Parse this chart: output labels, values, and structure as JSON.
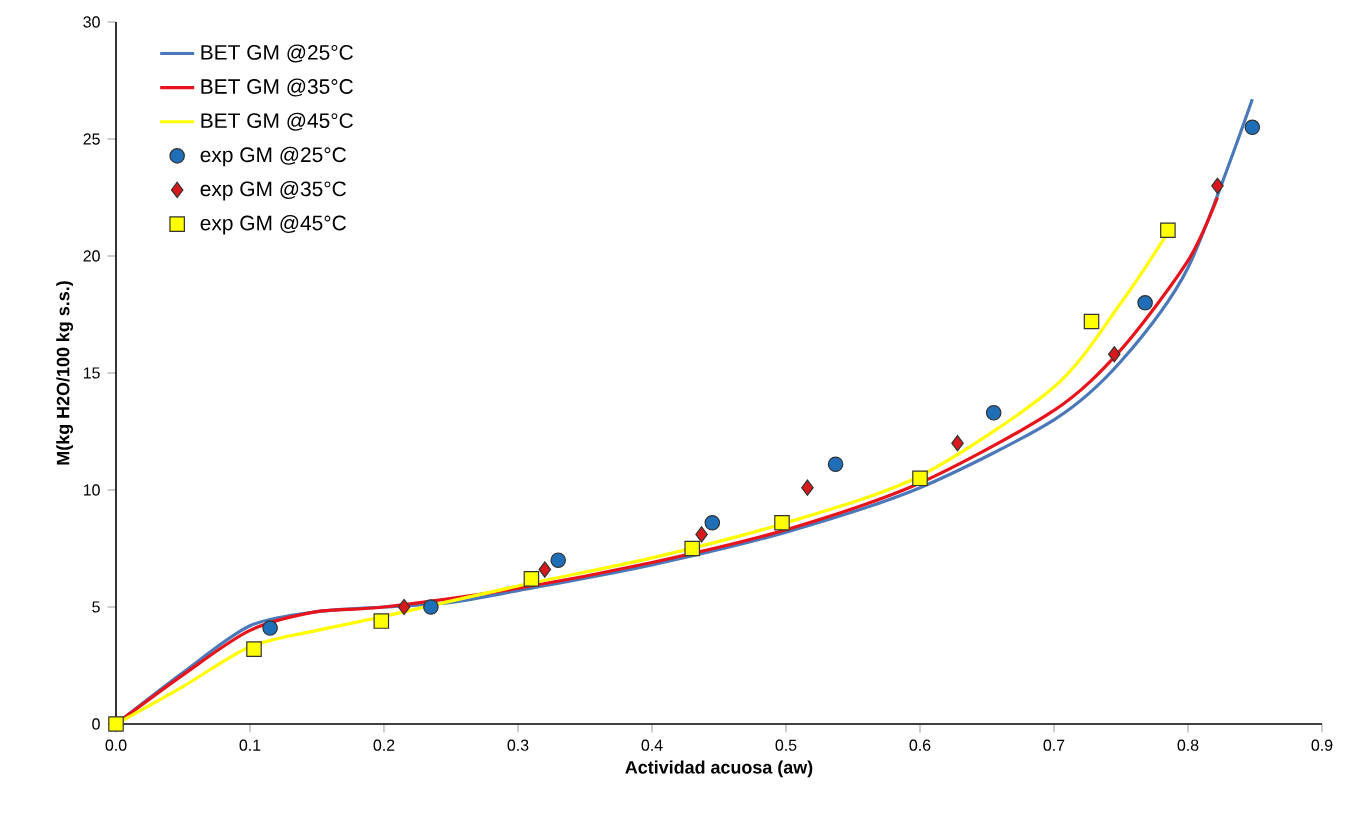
{
  "chart_data": {
    "type": "line",
    "xlabel": "Actividad acuosa (aw)",
    "ylabel": "M(kg H2O/100 kg s.s.)",
    "xlim": [
      0,
      0.9
    ],
    "ylim": [
      0,
      30
    ],
    "xticks": [
      {
        "value": 0,
        "label": "0.0"
      },
      {
        "value": 0.1,
        "label": "0.1"
      },
      {
        "value": 0.2,
        "label": "0.2"
      },
      {
        "value": 0.3,
        "label": "0.3"
      },
      {
        "value": 0.4,
        "label": "0.4"
      },
      {
        "value": 0.5,
        "label": "0.5"
      },
      {
        "value": 0.6,
        "label": "0.6"
      },
      {
        "value": 0.7,
        "label": "0.7"
      },
      {
        "value": 0.8,
        "label": "0.8"
      },
      {
        "value": 0.9,
        "label": "0.9"
      }
    ],
    "yticks": [
      0,
      5,
      10,
      15,
      20,
      25,
      30
    ],
    "legend": "top left",
    "grid": false,
    "series": [
      {
        "name": "BET GM @25°C",
        "marker": "none",
        "color": "#4a78b8",
        "x": [
          0,
          0.05,
          0.1,
          0.15,
          0.2,
          0.25,
          0.3,
          0.4,
          0.5,
          0.6,
          0.7,
          0.75,
          0.8,
          0.848
        ],
        "values": [
          0,
          2.2,
          4.2,
          4.8,
          5.0,
          5.2,
          5.7,
          6.8,
          8.2,
          10.1,
          13.0,
          15.5,
          19.5,
          26.7
        ]
      },
      {
        "name": "BET GM @35°C",
        "marker": "none",
        "color": "#e8141c",
        "x": [
          0,
          0.05,
          0.1,
          0.15,
          0.2,
          0.3,
          0.4,
          0.5,
          0.6,
          0.7,
          0.75,
          0.8,
          0.822
        ],
        "values": [
          0,
          2.1,
          4.0,
          4.8,
          5.0,
          5.8,
          6.9,
          8.3,
          10.3,
          13.4,
          16.0,
          19.8,
          22.5
        ]
      },
      {
        "name": "BET GM @45°C",
        "marker": "none",
        "color": "#ffff00",
        "x": [
          0,
          0.05,
          0.1,
          0.15,
          0.2,
          0.3,
          0.4,
          0.5,
          0.6,
          0.7,
          0.75,
          0.785
        ],
        "values": [
          0,
          1.6,
          3.3,
          4.0,
          4.6,
          5.9,
          7.1,
          8.6,
          10.6,
          14.4,
          18.0,
          21.0
        ]
      },
      {
        "name": "exp GM @25°C",
        "type": "scatter",
        "marker": "circle",
        "color": "#1f6fb8",
        "x": [
          0.115,
          0.235,
          0.33,
          0.445,
          0.537,
          0.655,
          0.768,
          0.848
        ],
        "values": [
          4.1,
          5.0,
          7.0,
          8.6,
          11.1,
          13.3,
          18.0,
          25.5
        ]
      },
      {
        "name": "exp GM @35°C",
        "type": "scatter",
        "marker": "diamond",
        "color": "#d7191c",
        "x": [
          0.215,
          0.32,
          0.437,
          0.516,
          0.628,
          0.745,
          0.822
        ],
        "values": [
          5.0,
          6.6,
          8.1,
          10.1,
          12.0,
          15.8,
          23.0
        ]
      },
      {
        "name": "exp GM @45°C",
        "type": "scatter",
        "marker": "square",
        "color": "#ffff00",
        "x": [
          0,
          0.103,
          0.198,
          0.31,
          0.43,
          0.497,
          0.6,
          0.728,
          0.785
        ],
        "values": [
          0,
          3.2,
          4.4,
          6.2,
          7.5,
          8.6,
          10.5,
          17.2,
          21.1
        ]
      }
    ]
  }
}
